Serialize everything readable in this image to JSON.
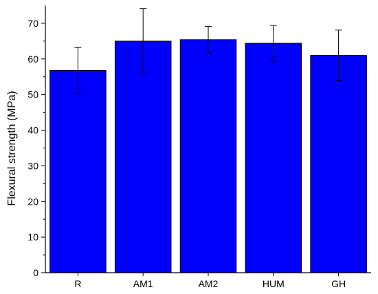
{
  "chart_data": {
    "type": "bar",
    "title": "",
    "xlabel": "",
    "ylabel": "Flexural strength (MPa)",
    "ylim": [
      0,
      75
    ],
    "yticks": [
      0,
      10,
      20,
      30,
      40,
      50,
      60,
      70
    ],
    "grid": false,
    "legend": "none",
    "categories": [
      "R",
      "AM1",
      "AM2",
      "HUM",
      "GH"
    ],
    "values": [
      56.8,
      65.0,
      65.4,
      64.4,
      61.0
    ],
    "errors": [
      6.4,
      9.1,
      3.7,
      5.0,
      7.1
    ],
    "bar_color": "#0000ff",
    "edge_color": "#000000"
  }
}
